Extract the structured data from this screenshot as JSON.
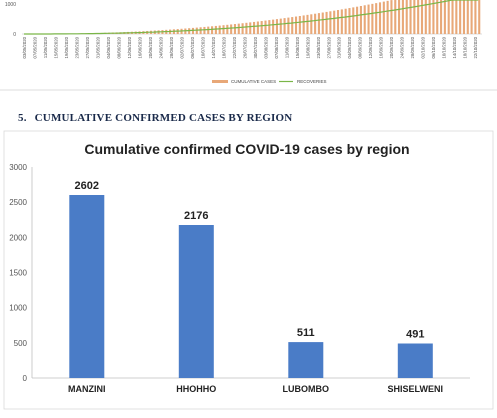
{
  "top_chart": {
    "y_ticks": [
      "1000",
      "0"
    ],
    "dates": [
      "03/05/2020",
      "07/05/2020",
      "11/05/2020",
      "15/05/2020",
      "19/05/2020",
      "23/05/2020",
      "27/05/2020",
      "31/05/2020",
      "04/06/2020",
      "08/06/2020",
      "12/06/2020",
      "16/06/2020",
      "20/06/2020",
      "24/06/2020",
      "28/06/2020",
      "02/07/2020",
      "06/07/2020",
      "10/07/2020",
      "14/07/2020",
      "18/07/2020",
      "22/07/2020",
      "26/07/2020",
      "30/07/2020",
      "03/08/2020",
      "07/08/2020",
      "11/08/2020",
      "15/08/2020",
      "19/08/2020",
      "23/08/2020",
      "27/08/2020",
      "31/08/2020",
      "04/09/2020",
      "08/09/2020",
      "12/09/2020",
      "16/09/2020",
      "20/09/2020",
      "24/09/2020",
      "28/09/2020",
      "02/10/2020",
      "06/10/2020",
      "10/10/2020",
      "14/10/2020",
      "18/10/2020",
      "22/10/2020"
    ],
    "legend": [
      "CUMULATIVE CASES",
      "RECOVERIES"
    ],
    "colors": {
      "cases": "#e8a878",
      "recoveries": "#7ab648"
    }
  },
  "section": {
    "number": "5.",
    "title": "CUMULATIVE CONFIRMED CASES BY REGION"
  },
  "chart_data": {
    "type": "bar",
    "title": "Cumulative confirmed COVID-19 cases by region",
    "categories": [
      "MANZINI",
      "HHOHHO",
      "LUBOMBO",
      "SHISELWENI"
    ],
    "values": [
      2602,
      2176,
      511,
      491
    ],
    "data_labels": [
      "2602",
      "2176",
      "511",
      "491"
    ],
    "ylim": [
      0,
      3000
    ],
    "y_ticks": [
      "0",
      "500",
      "1000",
      "1500",
      "2000",
      "2500",
      "3000"
    ],
    "grid": false,
    "legend": "none",
    "bar_color": "#4a7cc7"
  }
}
